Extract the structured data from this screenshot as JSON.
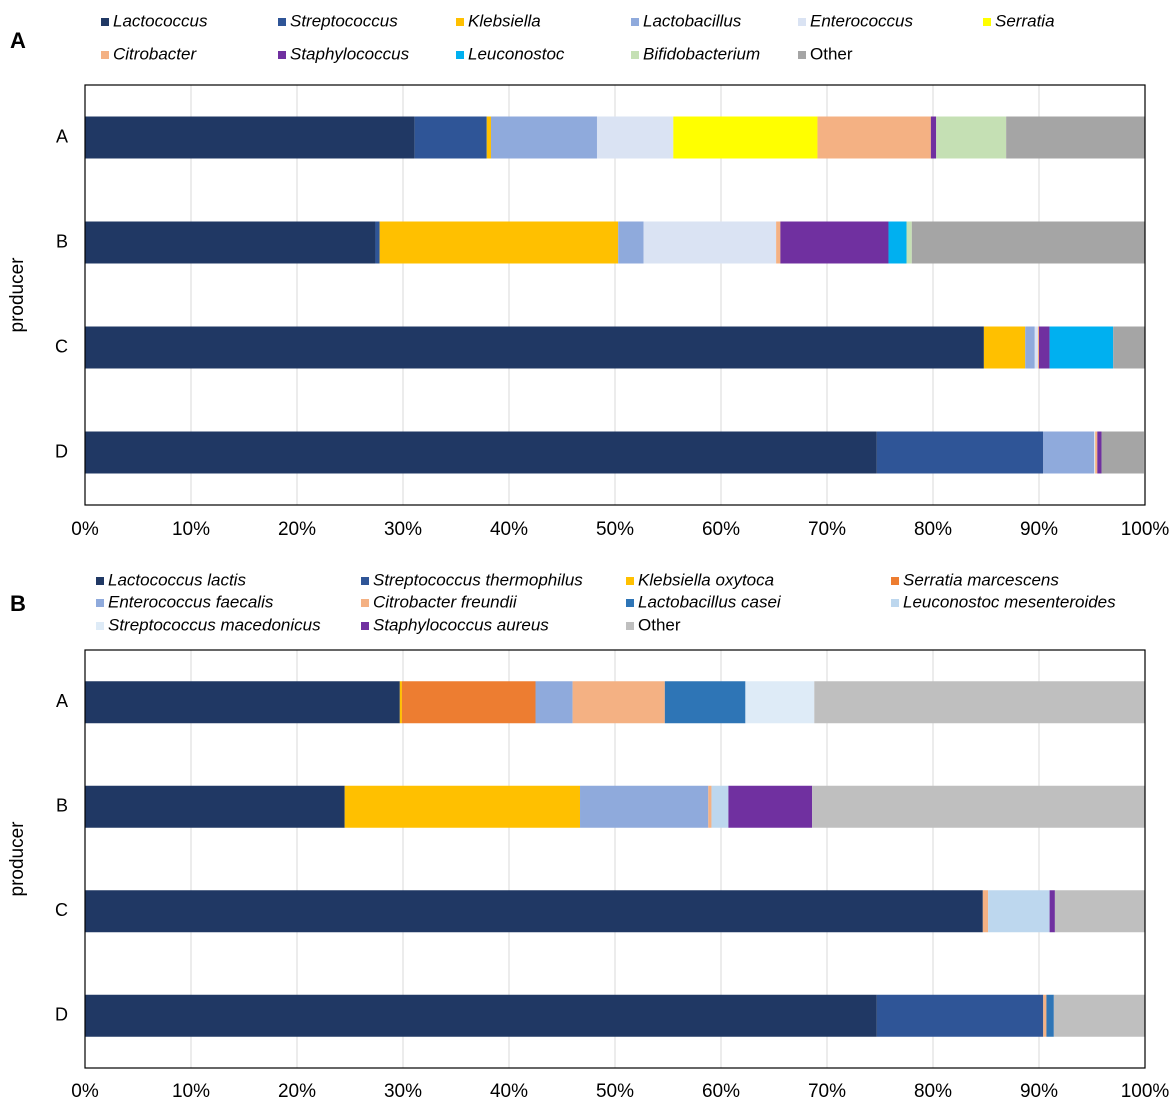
{
  "chart_data": [
    {
      "type": "bar",
      "orientation": "horizontal",
      "stacked": true,
      "panel_label": "A",
      "y_label": "producer",
      "categories": [
        "A",
        "B",
        "C",
        "D"
      ],
      "series": [
        {
          "name": "Lactococcus",
          "color": "#203864",
          "italic": true,
          "values": [
            31.1,
            27.4,
            84.8,
            74.7
          ]
        },
        {
          "name": "Streptococcus",
          "color": "#2f5597",
          "italic": true,
          "values": [
            6.8,
            0.4,
            0,
            15.7
          ]
        },
        {
          "name": "Klebsiella",
          "color": "#ffc000",
          "italic": true,
          "values": [
            0.4,
            22.5,
            3.9,
            0
          ]
        },
        {
          "name": "Lactobacillus",
          "color": "#8faadc",
          "italic": true,
          "values": [
            10.0,
            2.4,
            0.9,
            4.8
          ]
        },
        {
          "name": "Enterococcus",
          "color": "#dae3f3",
          "italic": true,
          "values": [
            7.2,
            12.5,
            0.3,
            0.1
          ]
        },
        {
          "name": "Serratia",
          "color": "#ffff00",
          "italic": true,
          "values": [
            13.6,
            0,
            0,
            0
          ]
        },
        {
          "name": "Citrobacter",
          "color": "#f4b183",
          "italic": true,
          "values": [
            10.7,
            0.4,
            0.1,
            0.2
          ]
        },
        {
          "name": "Staphylococcus",
          "color": "#7030a0",
          "italic": true,
          "values": [
            0.5,
            10.2,
            1.0,
            0.4
          ]
        },
        {
          "name": "Leuconostoc",
          "color": "#00b0f0",
          "italic": true,
          "values": [
            0,
            1.7,
            6.0,
            0
          ]
        },
        {
          "name": "Bifidobacterium",
          "color": "#c5e0b4",
          "italic": true,
          "values": [
            6.6,
            0.5,
            0,
            0
          ]
        },
        {
          "name": "Other",
          "color": "#a5a5a5",
          "italic": false,
          "values": [
            13.1,
            22.0,
            3.0,
            4.0
          ]
        }
      ],
      "xlim": [
        0,
        100
      ],
      "xticks": [
        {
          "value": 0,
          "label": "0%"
        },
        {
          "value": 10,
          "label": "10%"
        },
        {
          "value": 20,
          "label": "20%"
        },
        {
          "value": 30,
          "label": "30%"
        },
        {
          "value": 40,
          "label": "40%"
        },
        {
          "value": 50,
          "label": "50%"
        },
        {
          "value": 60,
          "label": "60%"
        },
        {
          "value": 70,
          "label": "70%"
        },
        {
          "value": 80,
          "label": "80%"
        },
        {
          "value": 90,
          "label": "90%"
        },
        {
          "value": 100,
          "label": "100%"
        }
      ],
      "grid": true
    },
    {
      "type": "bar",
      "orientation": "horizontal",
      "stacked": true,
      "panel_label": "B",
      "y_label": "producer",
      "categories": [
        "A",
        "B",
        "C",
        "D"
      ],
      "series": [
        {
          "name": "Lactococcus lactis",
          "color": "#203864",
          "italic": true,
          "values": [
            29.7,
            24.5,
            84.7,
            74.7
          ]
        },
        {
          "name": "Streptococcus thermophilus",
          "color": "#2f5597",
          "italic": true,
          "values": [
            0,
            0,
            0,
            15.7
          ]
        },
        {
          "name": "Klebsiella oxytoca",
          "color": "#ffc000",
          "italic": true,
          "values": [
            0.2,
            22.2,
            0,
            0
          ]
        },
        {
          "name": "Serratia marcescens",
          "color": "#ed7d31",
          "italic": true,
          "values": [
            12.6,
            0,
            0,
            0
          ]
        },
        {
          "name": "Enterococcus faecalis",
          "color": "#8faadc",
          "italic": true,
          "values": [
            3.5,
            12.1,
            0,
            0
          ]
        },
        {
          "name": "Citrobacter freundii",
          "color": "#f4b183",
          "italic": true,
          "values": [
            8.7,
            0.3,
            0.5,
            0.3
          ]
        },
        {
          "name": "Lactobacillus casei",
          "color": "#2e75b6",
          "italic": true,
          "values": [
            7.6,
            0,
            0,
            0.7
          ]
        },
        {
          "name": "Leuconostoc mesenteroides",
          "color": "#bdd7ee",
          "italic": true,
          "values": [
            0,
            1.6,
            5.8,
            0
          ]
        },
        {
          "name": "Streptococcus macedonicus",
          "color": "#deebf7",
          "italic": true,
          "values": [
            6.5,
            0,
            0,
            0
          ]
        },
        {
          "name": "Staphylococcus aureus",
          "color": "#7030a0",
          "italic": true,
          "values": [
            0,
            7.9,
            0.5,
            0
          ]
        },
        {
          "name": "Other",
          "color": "#bfbfbf",
          "italic": false,
          "values": [
            31.2,
            31.4,
            8.5,
            8.6
          ]
        }
      ],
      "xlim": [
        0,
        100
      ],
      "xticks": [
        {
          "value": 0,
          "label": "0%"
        },
        {
          "value": 10,
          "label": "10%"
        },
        {
          "value": 20,
          "label": "20%"
        },
        {
          "value": 30,
          "label": "30%"
        },
        {
          "value": 40,
          "label": "40%"
        },
        {
          "value": 50,
          "label": "50%"
        },
        {
          "value": 60,
          "label": "60%"
        },
        {
          "value": 70,
          "label": "70%"
        },
        {
          "value": 80,
          "label": "80%"
        },
        {
          "value": 90,
          "label": "90%"
        },
        {
          "value": 100,
          "label": "100%"
        }
      ],
      "grid": true
    }
  ]
}
